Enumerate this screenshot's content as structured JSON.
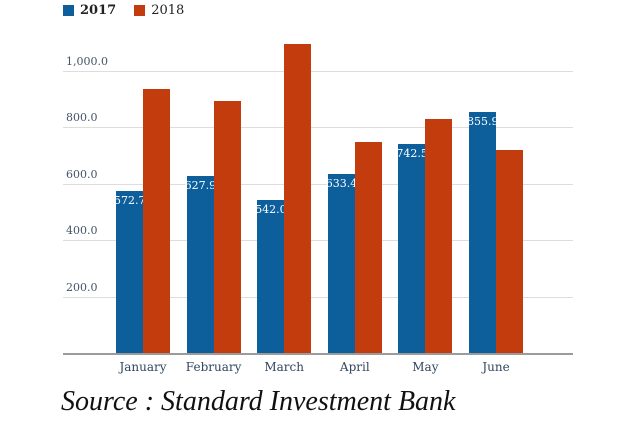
{
  "source_text": "Source : Standard Investment Bank",
  "colors": {
    "series_2017": "#0d5f9c",
    "series_2018": "#c23c0e",
    "gridline": "#dddddd",
    "axis_line": "#9b9b9b",
    "tick_text": "#44546a",
    "bar_label_text": "#ffffff"
  },
  "chart_data": {
    "type": "bar",
    "title": "",
    "xlabel": "",
    "ylabel": "",
    "categories": [
      "January",
      "February",
      "March",
      "April",
      "May",
      "June"
    ],
    "series": [
      {
        "name": "2017",
        "color": "#0d5f9c",
        "values": [
          572.7,
          627.9,
          542.0,
          633.4,
          742.5,
          855.9
        ],
        "value_labels": [
          "572.7",
          "627.9",
          "542.0",
          "633.4",
          "742.5",
          "855.9"
        ]
      },
      {
        "name": "2018",
        "color": "#c23c0e",
        "values": [
          935,
          895,
          1095,
          750,
          830,
          720
        ],
        "value_labels": []
      }
    ],
    "yticks": [
      200,
      400,
      600,
      800,
      1000
    ],
    "ytick_labels": [
      "200.0",
      "400.0",
      "600.0",
      "800.0",
      "1,000.0"
    ],
    "ylim": [
      0,
      1150
    ],
    "grid": true,
    "legend_position": "top-left",
    "notes": "2018 values estimated from gridlines; labels shown only on 2017 bars"
  }
}
